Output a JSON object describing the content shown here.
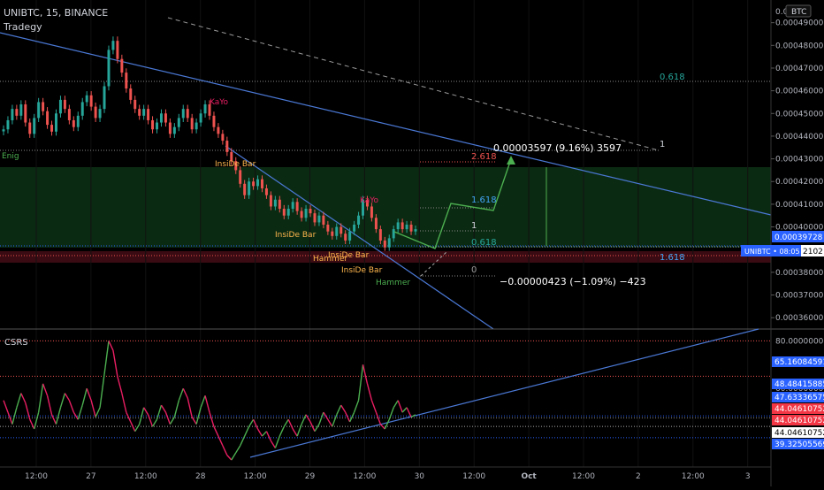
{
  "header": {
    "symbol_line": "UNIBTC, 15, BINANCE",
    "author": "Tradegy"
  },
  "price_axis": {
    "unit": "BTC",
    "ticks": [
      "0.00049000",
      "0.00048000",
      "0.00047000",
      "0.00046000",
      "0.00045000",
      "0.00044000",
      "0.00043000",
      "0.00042000",
      "0.00041000",
      "0.00040000",
      "0.00038000",
      "0.00037000",
      "0.00036000"
    ],
    "top_label": "0.00",
    "current_price": "0.00039728",
    "last_tag": "UNIBTC • 08:05",
    "last_value": "2102"
  },
  "time_axis": {
    "ticks": [
      "12:00",
      "27",
      "12:00",
      "28",
      "12:00",
      "29",
      "12:00",
      "30",
      "12:00",
      "Oct",
      "12:00",
      "2",
      "12:00",
      "3"
    ]
  },
  "fib_labels": {
    "upper_0618": "0.618",
    "upper_1": "1",
    "upper_2618": "2.618",
    "mid_1618": "1.618",
    "mid_1": "1",
    "mid_0618": "0.618",
    "mid_0": "0",
    "right_1618": "1.618"
  },
  "measures": {
    "up": "0.00003597 (9.16%) 3597",
    "down": "−0.00000423 (−1.09%) −423"
  },
  "patterns": {
    "kayo1": "KaYo",
    "kayo2": "KaYo",
    "inside1": "InsiDe Bar",
    "inside2": "InsiDe Bar",
    "inside3": "InsiDe Bar",
    "inside4": "InsiDe Bar",
    "hammer1": "Hammer",
    "hammer2": "Hammer",
    "left_tag": "Enig"
  },
  "csrs": {
    "title": "CSRS",
    "axis_ticks": [
      "80.00000000",
      "60.00000000"
    ],
    "value_tags": [
      {
        "value": "65.16084591",
        "color": "#2962ff"
      },
      {
        "value": "48.48415885",
        "color": "#2962ff"
      },
      {
        "value": "47.63336575",
        "color": "#2962ff"
      },
      {
        "value": "44.04610752",
        "color": "#f23645"
      },
      {
        "value": "44.04610752",
        "color": "#f23645"
      },
      {
        "value": "44.04610752",
        "color": "#ffffff"
      },
      {
        "value": "39.32505569",
        "color": "#2962ff"
      }
    ]
  },
  "colors": {
    "up": "#26a69a",
    "down": "#ef5350",
    "trend": "#2962ff",
    "indicator_up": "#4caf50",
    "indicator_down": "#e91e63"
  },
  "chart_data": {
    "type": "candlestick",
    "symbol": "UNIBTC",
    "timeframe": "15",
    "exchange": "BINANCE",
    "ylim": [
      0.000355,
      0.0005
    ],
    "current_price": 0.00039728,
    "series_close": [
      0.000443,
      0.000447,
      0.000452,
      0.000449,
      0.000454,
      0.000446,
      0.000441,
      0.000448,
      0.000455,
      0.000451,
      0.000445,
      0.000442,
      0.00045,
      0.000456,
      0.000452,
      0.000447,
      0.000444,
      0.000449,
      0.000455,
      0.000458,
      0.000453,
      0.000448,
      0.000452,
      0.000462,
      0.000478,
      0.000482,
      0.000474,
      0.000468,
      0.000461,
      0.000456,
      0.000452,
      0.000449,
      0.000452,
      0.000447,
      0.000443,
      0.000446,
      0.00045,
      0.000446,
      0.000441,
      0.000444,
      0.000448,
      0.000452,
      0.000448,
      0.000443,
      0.000446,
      0.00045,
      0.000454,
      0.000449,
      0.000444,
      0.000441,
      0.000438,
      0.000433,
      0.000429,
      0.000425,
      0.000419,
      0.000414,
      0.00042,
      0.000418,
      0.000421,
      0.000417,
      0.000414,
      0.000409,
      0.000412,
      0.000408,
      0.000405,
      0.000408,
      0.000411,
      0.000407,
      0.000404,
      0.000408,
      0.000406,
      0.000402,
      0.000405,
      0.000401,
      0.000398,
      0.000396,
      0.0004,
      0.000397,
      0.000394,
      0.000398,
      0.000401,
      0.000405,
      0.000412,
      0.000409,
      0.000404,
      0.000399,
      0.000394,
      0.000391,
      0.000395,
      0.000399,
      0.000402,
      0.000399,
      0.000401,
      0.000398,
      0.000399
    ],
    "indicator": {
      "name": "CSRS",
      "levels": [
        80,
        65.16084591,
        48.48415885,
        47.63336575,
        44.04610752,
        39.32505569
      ],
      "values": [
        55,
        50,
        45,
        52,
        58,
        54,
        47,
        43,
        50,
        62,
        57,
        49,
        45,
        52,
        58,
        55,
        50,
        47,
        53,
        60,
        55,
        48,
        52,
        66,
        80,
        76,
        65,
        58,
        50,
        46,
        42,
        45,
        52,
        49,
        44,
        47,
        53,
        50,
        45,
        48,
        55,
        60,
        56,
        48,
        45,
        52,
        57,
        50,
        44,
        40,
        36,
        32,
        30,
        33,
        36,
        40,
        44,
        47,
        43,
        40,
        42,
        38,
        35,
        40,
        44,
        47,
        43,
        40,
        45,
        49,
        46,
        42,
        45,
        50,
        47,
        44,
        49,
        53,
        50,
        46,
        50,
        55,
        70,
        62,
        55,
        50,
        45,
        43,
        47,
        52,
        55,
        50,
        52,
        48,
        49
      ]
    }
  }
}
